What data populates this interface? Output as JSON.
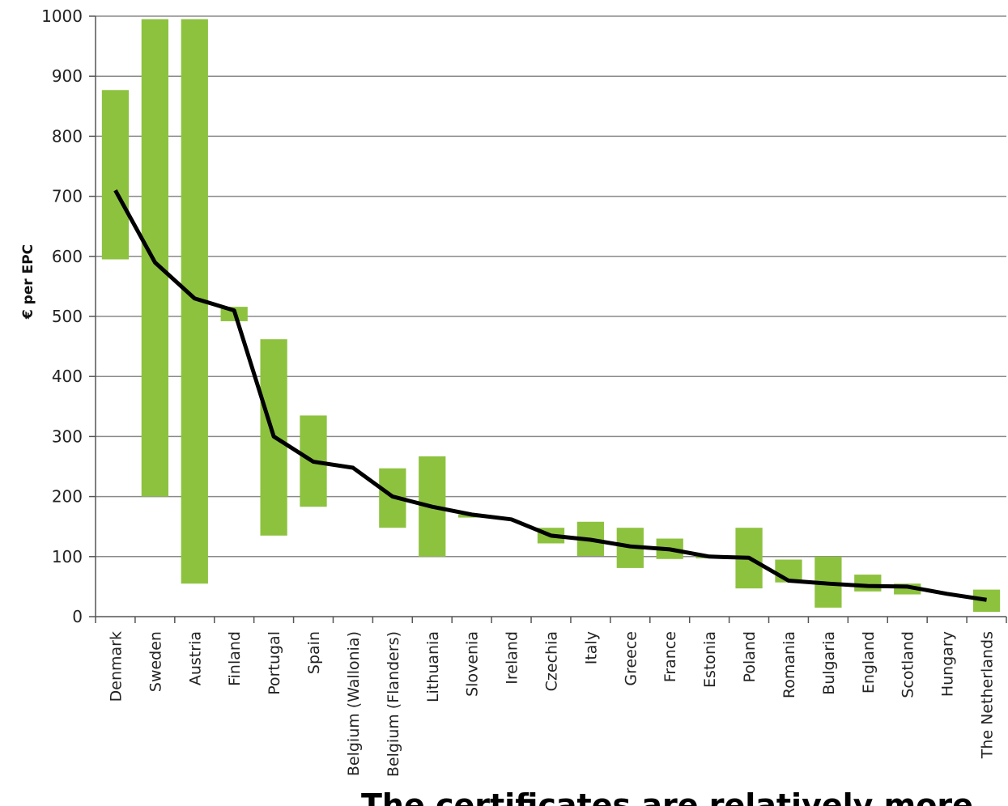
{
  "chart_data": {
    "type": "bar",
    "subtype": "floating-range-with-line",
    "ylabel": "€ per EPC",
    "xlabel": "",
    "ylim": [
      0,
      1000
    ],
    "yticks": [
      0,
      100,
      200,
      300,
      400,
      500,
      600,
      700,
      800,
      900,
      1000
    ],
    "grid": true,
    "legend": "none",
    "colors": {
      "range": "#8dc23f",
      "line": "#000000",
      "grid": "#8a8a8a"
    },
    "categories": [
      "Denmark",
      "Sweden",
      "Austria",
      "Finland",
      "Portugal",
      "Spain",
      "Belgium (Wallonia)",
      "Belgium (Flanders)",
      "Lithuania",
      "Slovenia",
      "Ireland",
      "Czechia",
      "Italy",
      "Greece",
      "France",
      "Estonia",
      "Poland",
      "Romania",
      "Bulgaria",
      "England",
      "Scotland",
      "Hungary",
      "The Netherlands"
    ],
    "series": [
      {
        "type": "range",
        "low": [
          595,
          200,
          55,
          492,
          135,
          183,
          null,
          148,
          100,
          165,
          null,
          122,
          101,
          81,
          96,
          97,
          47,
          57,
          15,
          42,
          37,
          null,
          8
        ],
        "high": [
          877,
          995,
          995,
          516,
          462,
          335,
          null,
          247,
          267,
          170,
          null,
          148,
          158,
          148,
          130,
          100,
          148,
          95,
          100,
          70,
          55,
          null,
          45
        ]
      },
      {
        "type": "line",
        "values": [
          710,
          590,
          530,
          510,
          300,
          258,
          248,
          200,
          183,
          170,
          162,
          135,
          128,
          117,
          112,
          100,
          98,
          60,
          55,
          51,
          50,
          38,
          28
        ]
      }
    ]
  },
  "caption": "The certificates are relatively more"
}
